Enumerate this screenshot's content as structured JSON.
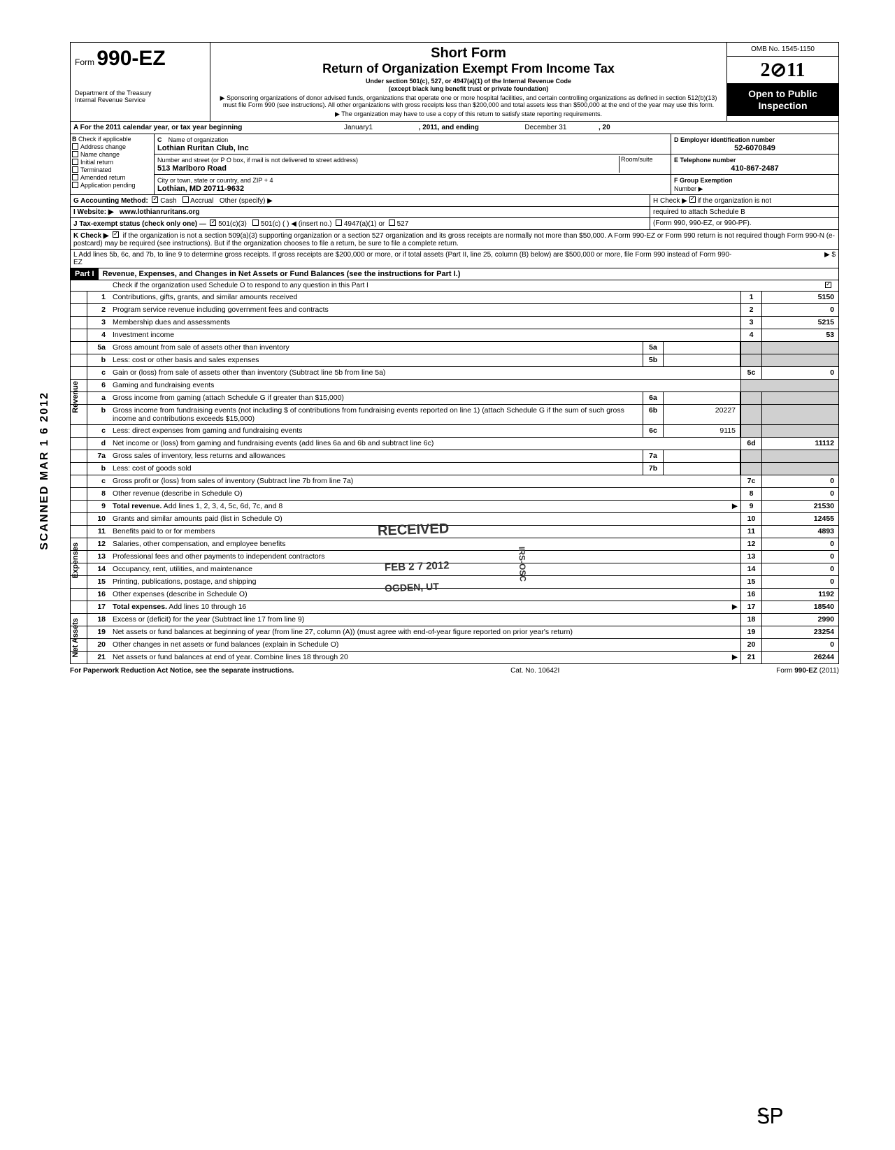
{
  "header": {
    "form_prefix": "Form",
    "form_number": "990-EZ",
    "dept1": "Department of the Treasury",
    "dept2": "Internal Revenue Service",
    "title1": "Short Form",
    "title2": "Return of Organization Exempt From Income Tax",
    "sub1": "Under section 501(c), 527, or 4947(a)(1) of the Internal Revenue Code",
    "sub2": "(except black lung benefit trust or private foundation)",
    "sub3": "▶ Sponsoring organizations of donor advised funds, organizations that operate one or more hospital facilities, and certain controlling organizations as defined in section 512(b)(13) must file Form 990 (see instructions). All other organizations with gross receipts less than $200,000 and total assets less than $500,000 at the end of the year may use this form.",
    "sub4": "▶ The organization may have to use a copy of this return to satisfy state reporting requirements.",
    "omb": "OMB No. 1545-1150",
    "year": "2011",
    "open": "Open to Public Inspection"
  },
  "lineA": {
    "prefix": "A For the 2011 calendar year, or tax year beginning",
    "mid": "January1",
    "mid2": ", 2011, and ending",
    "end1": "December 31",
    "end2": ", 20"
  },
  "boxB": {
    "hdr": "B",
    "sub": "Check if applicable",
    "items": [
      "Address change",
      "Name change",
      "Initial return",
      "Terminated",
      "Amended return",
      "Application pending"
    ]
  },
  "boxC": {
    "lblC": "C",
    "lblName": "Name of organization",
    "name": "Lothian Ruritan Club, Inc",
    "lblAddr": "Number and street (or P O  box, if mail is not delivered to street address)",
    "room": "Room/suite",
    "addr": "513 Marlboro Road",
    "lblCity": "City or town, state or country, and ZIP + 4",
    "city": "Lothian, MD 20711-9632"
  },
  "boxD": {
    "lbl": "D Employer identification number",
    "val": "52-6070849",
    "lblE": "E Telephone number",
    "valE": "410-867-2487",
    "lblF": "F Group Exemption",
    "lblF2": "Number ▶"
  },
  "lineG": {
    "lbl": "G Accounting Method:",
    "cash": "Cash",
    "accrual": "Accrual",
    "other": "Other (specify) ▶"
  },
  "lineH": {
    "txt": "H Check ▶",
    "txt2": "if the organization is not",
    "txt3": "required to attach Schedule B",
    "txt4": "(Form 990, 990-EZ, or 990-PF)."
  },
  "lineI": {
    "lbl": "I   Website: ▶",
    "val": "www.lothianruritans.org"
  },
  "lineJ": {
    "txt": "J Tax-exempt status (check only one) —",
    "c1": "501(c)(3)",
    "c2": "501(c) (",
    "c2b": ") ◀ (insert no.)",
    "c3": "4947(a)(1) or",
    "c4": "527"
  },
  "lineK": {
    "lbl": "K Check ▶",
    "txt": "if the organization is not a section 509(a)(3) supporting organization or a section 527 organization and its gross receipts are normally not more than $50,000. A Form 990-EZ or Form 990 return is not required though Form 990-N (e-postcard) may be required (see instructions). But if the organization chooses to file a return, be sure to file a complete return."
  },
  "lineL": {
    "txt": "L Add lines 5b, 6c, and 7b, to line 9 to determine gross receipts. If gross receipts are $200,000 or more, or if total assets (Part II, line 25, column (B) below) are $500,000 or more, file Form 990 instead of Form 990-EZ",
    "arrow": "▶ $"
  },
  "part1": {
    "hdr": "Part I",
    "title": "Revenue, Expenses, and Changes in Net Assets or Fund Balances (see the instructions for Part I.)",
    "check": "Check if the organization used Schedule O to respond to any question in this Part I"
  },
  "sidelabels": {
    "rev": "Revenue",
    "exp": "Expenses",
    "net": "Net Assets"
  },
  "rows": [
    {
      "n": "1",
      "d": "Contributions, gifts, grants, and similar amounts received",
      "en": "1",
      "ev": "5150"
    },
    {
      "n": "2",
      "d": "Program service revenue including government fees and contracts",
      "en": "2",
      "ev": "0"
    },
    {
      "n": "3",
      "d": "Membership dues and assessments",
      "en": "3",
      "ev": "5215"
    },
    {
      "n": "4",
      "d": "Investment income",
      "en": "4",
      "ev": "53"
    },
    {
      "n": "5a",
      "d": "Gross amount from sale of assets other than inventory",
      "mn": "5a",
      "mv": ""
    },
    {
      "n": "b",
      "d": "Less: cost or other basis and sales expenses",
      "mn": "5b",
      "mv": ""
    },
    {
      "n": "c",
      "d": "Gain or (loss) from sale of assets other than inventory (Subtract line 5b from line 5a)",
      "en": "5c",
      "ev": "0"
    },
    {
      "n": "6",
      "d": "Gaming and fundraising events"
    },
    {
      "n": "a",
      "d": "Gross income from gaming (attach Schedule G if greater than $15,000)",
      "mn": "6a",
      "mv": ""
    },
    {
      "n": "b",
      "d": "Gross income from fundraising events (not including  $                           of contributions from fundraising events reported on line 1) (attach Schedule G if the sum of such gross income and contributions exceeds $15,000)",
      "mn": "6b",
      "mv": "20227"
    },
    {
      "n": "c",
      "d": "Less: direct expenses from gaming and fundraising events",
      "mn": "6c",
      "mv": "9115"
    },
    {
      "n": "d",
      "d": "Net income or (loss) from gaming and fundraising events (add lines 6a and 6b and subtract line 6c)",
      "en": "6d",
      "ev": "11112"
    },
    {
      "n": "7a",
      "d": "Gross sales of inventory, less returns and allowances",
      "mn": "7a",
      "mv": ""
    },
    {
      "n": "b",
      "d": "Less: cost of goods sold",
      "mn": "7b",
      "mv": ""
    },
    {
      "n": "c",
      "d": "Gross profit or (loss) from sales of inventory (Subtract line 7b from line 7a)",
      "en": "7c",
      "ev": "0"
    },
    {
      "n": "8",
      "d": "Other revenue (describe in Schedule O)",
      "en": "8",
      "ev": "0"
    },
    {
      "n": "9",
      "d": "Total revenue. Add lines 1, 2, 3, 4, 5c, 6d, 7c, and 8",
      "en": "9",
      "ev": "21530",
      "bold": true,
      "arrow": true
    },
    {
      "n": "10",
      "d": "Grants and similar amounts paid (list in Schedule O)",
      "en": "10",
      "ev": "12455"
    },
    {
      "n": "11",
      "d": "Benefits paid to or for members",
      "en": "11",
      "ev": "4893"
    },
    {
      "n": "12",
      "d": "Salaries, other compensation, and employee benefits",
      "en": "12",
      "ev": "0"
    },
    {
      "n": "13",
      "d": "Professional fees and other payments to independent contractors",
      "en": "13",
      "ev": "0"
    },
    {
      "n": "14",
      "d": "Occupancy, rent, utilities, and maintenance",
      "en": "14",
      "ev": "0"
    },
    {
      "n": "15",
      "d": "Printing, publications, postage, and shipping",
      "en": "15",
      "ev": "0"
    },
    {
      "n": "16",
      "d": "Other expenses (describe in Schedule O)",
      "en": "16",
      "ev": "1192"
    },
    {
      "n": "17",
      "d": "Total expenses. Add lines 10 through 16",
      "en": "17",
      "ev": "18540",
      "bold": true,
      "arrow": true
    },
    {
      "n": "18",
      "d": "Excess or (deficit) for the year (Subtract line 17 from line 9)",
      "en": "18",
      "ev": "2990"
    },
    {
      "n": "19",
      "d": "Net assets or fund balances at beginning of year (from line 27, column (A)) (must agree with end-of-year figure reported on prior year's return)",
      "en": "19",
      "ev": "23254"
    },
    {
      "n": "20",
      "d": "Other changes in net assets or fund balances (explain in Schedule O)",
      "en": "20",
      "ev": "0"
    },
    {
      "n": "21",
      "d": "Net assets or fund balances at end of year. Combine lines 18 through 20",
      "en": "21",
      "ev": "26244",
      "arrow": true
    }
  ],
  "footer": {
    "left": "For Paperwork Reduction Act Notice, see the separate instructions.",
    "mid": "Cat. No. 10642I",
    "right": "Form 990-EZ (2011)"
  },
  "stamps": {
    "scanned": "SCANNED MAR 1 6 2012",
    "received": "RECEIVED",
    "date": "FEB 2 7 2012",
    "ogden": "OGDEN, UT",
    "irs": "IRS-OSC",
    "initials": "ᎦᏢ"
  },
  "colors": {
    "black": "#000000",
    "white": "#ffffff",
    "shade": "#d0d0d0"
  }
}
